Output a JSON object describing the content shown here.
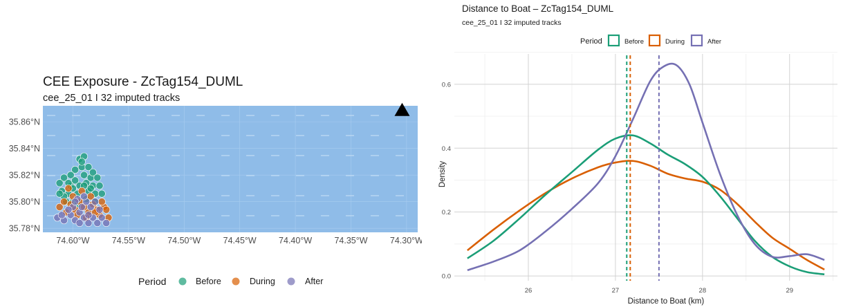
{
  "colors": {
    "before": "#1b9e77",
    "during": "#d95f02",
    "after": "#7570b3",
    "water": "#8fbce8"
  },
  "left": {
    "title": "CEE Exposure - ZcTag154_DUML",
    "subtitle": "cee_25_01 I 32 imputed tracks",
    "legend_title": "Period",
    "legend_items": [
      "Before",
      "During",
      "After"
    ]
  },
  "right": {
    "title": "Distance to Boat – ZcTag154_DUML",
    "subtitle": "cee_25_01 I 32 imputed tracks",
    "legend_title": "Period",
    "legend_items": [
      "Before",
      "During",
      "After"
    ]
  },
  "chart_data": [
    {
      "type": "scatter",
      "title": "CEE Exposure - ZcTag154_DUML",
      "subtitle": "cee_25_01 I 32 imputed tracks",
      "x_ticks": [
        "74.60°W",
        "74.55°W",
        "74.50°W",
        "74.45°W",
        "74.40°W",
        "74.35°W",
        "74.30°W"
      ],
      "x_tick_values": [
        -74.6,
        -74.55,
        -74.5,
        -74.45,
        -74.4,
        -74.35,
        -74.3
      ],
      "y_ticks": [
        "35.86°N",
        "35.84°N",
        "35.82°N",
        "35.80°N",
        "35.78°N"
      ],
      "y_tick_values": [
        35.86,
        35.84,
        35.82,
        35.8,
        35.78
      ],
      "xlim": [
        -74.627,
        -74.29
      ],
      "ylim": [
        35.777,
        35.872
      ],
      "boat_location": {
        "lon": -74.304,
        "lat": 35.869
      },
      "legend": "bottom",
      "series": [
        {
          "name": "Before",
          "points": [
            [
              -74.608,
              35.818
            ],
            [
              -74.602,
              35.812
            ],
            [
              -74.598,
              35.824
            ],
            [
              -74.594,
              35.832
            ],
            [
              -74.592,
              35.826
            ],
            [
              -74.59,
              35.82
            ],
            [
              -74.588,
              35.814
            ],
            [
              -74.586,
              35.808
            ],
            [
              -74.584,
              35.818
            ],
            [
              -74.582,
              35.812
            ],
            [
              -74.58,
              35.806
            ],
            [
              -74.596,
              35.806
            ],
            [
              -74.6,
              35.8
            ],
            [
              -74.604,
              35.806
            ],
            [
              -74.61,
              35.808
            ],
            [
              -74.606,
              35.8
            ],
            [
              -74.59,
              35.834
            ],
            [
              -74.592,
              35.83
            ],
            [
              -74.586,
              35.826
            ],
            [
              -74.582,
              35.822
            ],
            [
              -74.578,
              35.818
            ],
            [
              -74.576,
              35.812
            ],
            [
              -74.574,
              35.806
            ],
            [
              -74.598,
              35.816
            ],
            [
              -74.594,
              35.812
            ],
            [
              -74.602,
              35.82
            ],
            [
              -74.612,
              35.814
            ],
            [
              -74.608,
              35.804
            ],
            [
              -74.6,
              35.81
            ],
            [
              -74.588,
              35.802
            ],
            [
              -74.584,
              35.81
            ],
            [
              -74.58,
              35.8
            ],
            [
              -74.596,
              35.798
            ],
            [
              -74.59,
              35.812
            ],
            [
              -74.604,
              35.814
            ],
            [
              -74.612,
              35.806
            ]
          ]
        },
        {
          "name": "During",
          "points": [
            [
              -74.612,
              35.796
            ],
            [
              -74.606,
              35.792
            ],
            [
              -74.602,
              35.798
            ],
            [
              -74.598,
              35.794
            ],
            [
              -74.594,
              35.8
            ],
            [
              -74.59,
              35.796
            ],
            [
              -74.586,
              35.792
            ],
            [
              -74.582,
              35.798
            ],
            [
              -74.578,
              35.794
            ],
            [
              -74.576,
              35.79
            ],
            [
              -74.572,
              35.796
            ],
            [
              -74.568,
              35.788
            ],
            [
              -74.6,
              35.804
            ],
            [
              -74.592,
              35.808
            ],
            [
              -74.584,
              35.804
            ],
            [
              -74.596,
              35.79
            ],
            [
              -74.588,
              35.788
            ],
            [
              -74.58,
              35.792
            ],
            [
              -74.608,
              35.8
            ],
            [
              -74.574,
              35.8
            ],
            [
              -74.57,
              35.794
            ],
            [
              -74.604,
              35.81
            ]
          ]
        },
        {
          "name": "After",
          "points": [
            [
              -74.614,
              35.788
            ],
            [
              -74.608,
              35.786
            ],
            [
              -74.602,
              35.79
            ],
            [
              -74.598,
              35.786
            ],
            [
              -74.594,
              35.792
            ],
            [
              -74.59,
              35.788
            ],
            [
              -74.586,
              35.784
            ],
            [
              -74.582,
              35.788
            ],
            [
              -74.578,
              35.784
            ],
            [
              -74.574,
              35.788
            ],
            [
              -74.57,
              35.784
            ],
            [
              -74.6,
              35.796
            ],
            [
              -74.596,
              35.802
            ],
            [
              -74.592,
              35.796
            ],
            [
              -74.588,
              35.8
            ],
            [
              -74.584,
              35.796
            ],
            [
              -74.58,
              35.8
            ],
            [
              -74.576,
              35.794
            ],
            [
              -74.604,
              35.794
            ],
            [
              -74.61,
              35.79
            ],
            [
              -74.594,
              35.784
            ],
            [
              -74.586,
              35.79
            ],
            [
              -74.598,
              35.8
            ],
            [
              -74.59,
              35.804
            ]
          ]
        }
      ]
    },
    {
      "type": "line",
      "title": "Distance to Boat – ZcTag154_DUML",
      "subtitle": "cee_25_01 I 32 imputed tracks",
      "xlabel": "Distance to Boat (km)",
      "ylabel": "Density",
      "x_ticks": [
        26,
        27,
        28,
        29
      ],
      "y_ticks": [
        0.0,
        0.2,
        0.4,
        0.6
      ],
      "xlim": [
        25.15,
        29.55
      ],
      "ylim": [
        -0.015,
        0.695
      ],
      "legend": "top",
      "series": [
        {
          "name": "Before",
          "mean_line": 27.13,
          "x": [
            25.3,
            25.6,
            25.9,
            26.2,
            26.5,
            26.8,
            27.0,
            27.2,
            27.4,
            27.6,
            27.8,
            28.0,
            28.2,
            28.4,
            28.6,
            28.8,
            29.0,
            29.2,
            29.4
          ],
          "y": [
            0.055,
            0.11,
            0.18,
            0.255,
            0.325,
            0.395,
            0.43,
            0.44,
            0.415,
            0.38,
            0.35,
            0.31,
            0.25,
            0.18,
            0.11,
            0.06,
            0.03,
            0.012,
            0.005
          ]
        },
        {
          "name": "During",
          "mean_line": 27.17,
          "x": [
            25.3,
            25.6,
            25.9,
            26.2,
            26.5,
            26.8,
            27.0,
            27.2,
            27.4,
            27.6,
            27.8,
            28.0,
            28.2,
            28.4,
            28.6,
            28.8,
            29.0,
            29.2,
            29.4
          ],
          "y": [
            0.08,
            0.145,
            0.205,
            0.26,
            0.305,
            0.34,
            0.355,
            0.36,
            0.345,
            0.32,
            0.305,
            0.295,
            0.27,
            0.225,
            0.17,
            0.12,
            0.085,
            0.05,
            0.02
          ]
        },
        {
          "name": "After",
          "mean_line": 27.5,
          "x": [
            25.3,
            25.6,
            25.9,
            26.2,
            26.5,
            26.8,
            27.0,
            27.2,
            27.4,
            27.55,
            27.7,
            27.85,
            28.0,
            28.2,
            28.4,
            28.6,
            28.8,
            29.0,
            29.2,
            29.4
          ],
          "y": [
            0.018,
            0.045,
            0.08,
            0.14,
            0.21,
            0.29,
            0.375,
            0.49,
            0.61,
            0.655,
            0.66,
            0.6,
            0.48,
            0.32,
            0.19,
            0.1,
            0.06,
            0.062,
            0.068,
            0.05
          ]
        }
      ]
    }
  ]
}
